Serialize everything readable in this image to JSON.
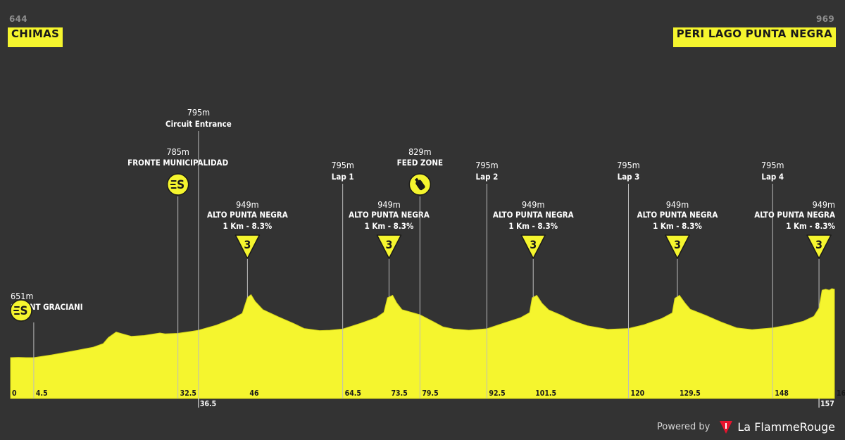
{
  "start": {
    "altitude": "644",
    "name": "CHIMAS"
  },
  "finish": {
    "altitude": "969",
    "name": "PERI LAGO PUNTA NEGRA"
  },
  "footer": {
    "powered_by": "Powered by",
    "brand": "La FlammeRouge"
  },
  "colors": {
    "background": "#333333",
    "profile_fill": "#f5f52e",
    "profile_edge": "#d9d91a",
    "text": "#ffffff",
    "marker_line": "#bcbcbc"
  },
  "chart_data": {
    "type": "area",
    "xlabel": "",
    "ylabel": "",
    "xlim": [
      0,
      160
    ],
    "ylim": [
      550,
      1000
    ],
    "x_ticks": [
      "0",
      "4.5",
      "32.5",
      "36.5",
      "46",
      "64.5",
      "73.5",
      "79.5",
      "92.5",
      "101.5",
      "120",
      "129.5",
      "148",
      "157",
      "160"
    ],
    "profile": [
      [
        0,
        651
      ],
      [
        1.5,
        652
      ],
      [
        3,
        651
      ],
      [
        4.5,
        651
      ],
      [
        8,
        660
      ],
      [
        12,
        672
      ],
      [
        16,
        685
      ],
      [
        18,
        697
      ],
      [
        19,
        717
      ],
      [
        20.5,
        735
      ],
      [
        22,
        728
      ],
      [
        23.5,
        721
      ],
      [
        26,
        724
      ],
      [
        29,
        732
      ],
      [
        30,
        729
      ],
      [
        32.5,
        731
      ],
      [
        35,
        737
      ],
      [
        36.5,
        741
      ],
      [
        40,
        758
      ],
      [
        43,
        778
      ],
      [
        45,
        797
      ],
      [
        46,
        849
      ],
      [
        46.7,
        858
      ],
      [
        47.5,
        836
      ],
      [
        49,
        809
      ],
      [
        52,
        785
      ],
      [
        55,
        763
      ],
      [
        57,
        747
      ],
      [
        60,
        740
      ],
      [
        62,
        741
      ],
      [
        64.5,
        745
      ],
      [
        68,
        764
      ],
      [
        71,
        782
      ],
      [
        72.5,
        800
      ],
      [
        73.2,
        848
      ],
      [
        74.2,
        856
      ],
      [
        75,
        831
      ],
      [
        76,
        809
      ],
      [
        79.5,
        792
      ],
      [
        82,
        770
      ],
      [
        84,
        752
      ],
      [
        86,
        745
      ],
      [
        89,
        741
      ],
      [
        92.5,
        746
      ],
      [
        95,
        760
      ],
      [
        99,
        782
      ],
      [
        100.8,
        799
      ],
      [
        101.3,
        848
      ],
      [
        102.2,
        856
      ],
      [
        103.2,
        830
      ],
      [
        104.5,
        808
      ],
      [
        107,
        790
      ],
      [
        109,
        773
      ],
      [
        112,
        756
      ],
      [
        116,
        744
      ],
      [
        120,
        747
      ],
      [
        123,
        759
      ],
      [
        126.5,
        780
      ],
      [
        128.5,
        798
      ],
      [
        129,
        846
      ],
      [
        129.9,
        856
      ],
      [
        131,
        830
      ],
      [
        132,
        810
      ],
      [
        135,
        790
      ],
      [
        138,
        768
      ],
      [
        141,
        749
      ],
      [
        144,
        743
      ],
      [
        148,
        749
      ],
      [
        151,
        758
      ],
      [
        154,
        771
      ],
      [
        156,
        787
      ],
      [
        157,
        814
      ],
      [
        157.6,
        873
      ],
      [
        158.3,
        876
      ],
      [
        159,
        873
      ],
      [
        159.5,
        878
      ],
      [
        160,
        876
      ]
    ],
    "annotations": [
      {
        "km": 4.5,
        "elevation": "651m",
        "label": "SPRINT GRACIANI",
        "icon": "sprint-icon",
        "icon_kind": "sprint"
      },
      {
        "km": 32.5,
        "elevation": "785m",
        "label": "FRONTE MUNICIPALIDAD",
        "icon": "sprint-icon",
        "icon_kind": "sprint"
      },
      {
        "km": 36.5,
        "elevation": "795m",
        "label": "Circuit Entrance",
        "icon": "",
        "icon_kind": "none"
      },
      {
        "km": 46,
        "elevation": "949m",
        "label": "ALTO PUNTA NEGRA",
        "detail": "1 Km - 8.3%",
        "icon": "kom-icon",
        "icon_kind": "kom",
        "category": "3"
      },
      {
        "km": 64.5,
        "elevation": "795m",
        "label": "Lap 1",
        "icon": "",
        "icon_kind": "none"
      },
      {
        "km": 73.5,
        "elevation": "949m",
        "label": "ALTO PUNTA NEGRA",
        "detail": "1 Km - 8.3%",
        "icon": "kom-icon",
        "icon_kind": "kom",
        "category": "3"
      },
      {
        "km": 79.5,
        "elevation": "829m",
        "label": "FEED ZONE",
        "icon": "feed-bottle-icon",
        "icon_kind": "feed"
      },
      {
        "km": 92.5,
        "elevation": "795m",
        "label": "Lap 2",
        "icon": "",
        "icon_kind": "none"
      },
      {
        "km": 101.5,
        "elevation": "949m",
        "label": "ALTO PUNTA NEGRA",
        "detail": "1 Km - 8.3%",
        "icon": "kom-icon",
        "icon_kind": "kom",
        "category": "3"
      },
      {
        "km": 120,
        "elevation": "795m",
        "label": "Lap 3",
        "icon": "",
        "icon_kind": "none"
      },
      {
        "km": 129.5,
        "elevation": "949m",
        "label": "ALTO PUNTA NEGRA",
        "detail": "1 Km - 8.3%",
        "icon": "kom-icon",
        "icon_kind": "kom",
        "category": "3"
      },
      {
        "km": 148,
        "elevation": "795m",
        "label": "Lap 4",
        "icon": "",
        "icon_kind": "none"
      },
      {
        "km": 157,
        "elevation": "949m",
        "label": "ALTO PUNTA NEGRA",
        "detail": "1 Km - 8.3%",
        "icon": "kom-icon",
        "icon_kind": "kom",
        "category": "3"
      }
    ]
  }
}
